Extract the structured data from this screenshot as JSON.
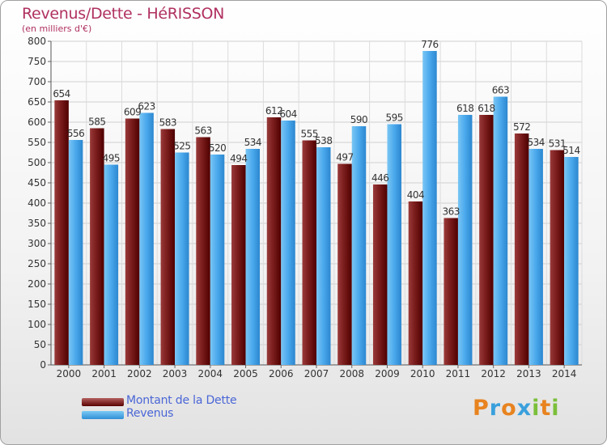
{
  "title": "Revenus/Dette - HéRISSON",
  "subtitle": "(en milliers d'€)",
  "colors": {
    "debt": "#7a1a1a",
    "revenue": "#4aa8ec",
    "title": "#b03060"
  },
  "chart_data": {
    "type": "bar",
    "title": "Revenus/Dette - HéRISSON",
    "ylabel": "(en milliers d'€)",
    "xlabel": "",
    "ylim": [
      0,
      800
    ],
    "ytick_step": 50,
    "grid": true,
    "legend_position": "bottom-left",
    "categories": [
      "2000",
      "2001",
      "2002",
      "2003",
      "2004",
      "2005",
      "2006",
      "2007",
      "2008",
      "2009",
      "2010",
      "2011",
      "2012",
      "2013",
      "2014"
    ],
    "series": [
      {
        "name": "Montant de la Dette",
        "values": [
          654,
          585,
          609,
          583,
          563,
          494,
          612,
          555,
          497,
          446,
          404,
          363,
          618,
          572,
          531
        ]
      },
      {
        "name": "Revenus",
        "values": [
          556,
          495,
          623,
          525,
          520,
          534,
          604,
          538,
          590,
          595,
          776,
          618,
          663,
          534,
          514
        ]
      }
    ]
  },
  "legend": [
    {
      "label": "Montant de la Dette"
    },
    {
      "label": "Revenus"
    }
  ],
  "logo": {
    "text": "Proxiti",
    "letters": [
      "P",
      "r",
      "o",
      "x",
      "i",
      "t",
      "i"
    ],
    "letter_colors": [
      "#e8831f",
      "#3aa0dc",
      "#e8831f",
      "#3aa0dc",
      "#7bbf3a",
      "#e8831f",
      "#7bbf3a"
    ]
  }
}
